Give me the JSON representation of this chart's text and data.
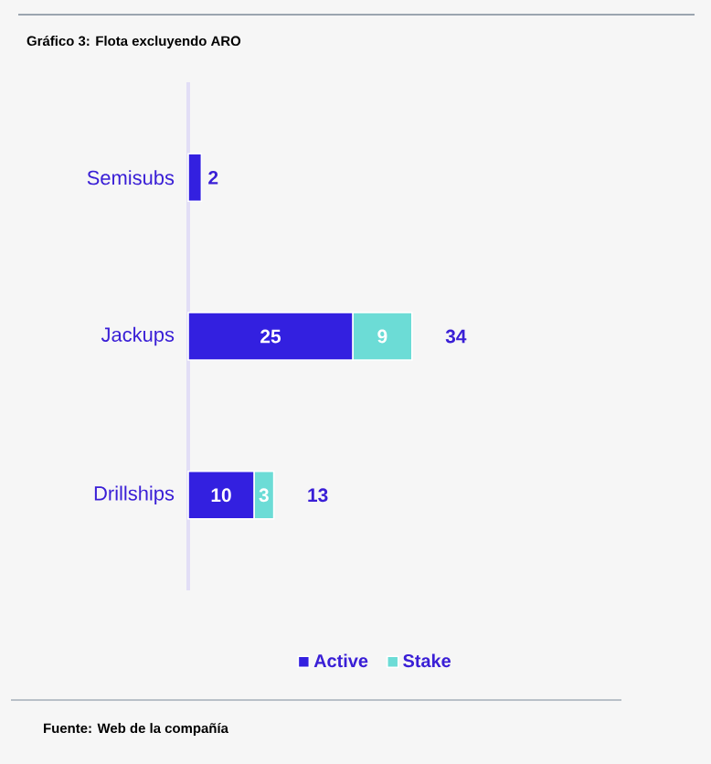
{
  "chart_data": {
    "type": "bar",
    "orientation": "horizontal",
    "stacked": true,
    "title": "Gráfico 3: Flota excluyendo ARO",
    "categories": [
      "Semisubs",
      "Jackups",
      "Drillships"
    ],
    "series": [
      {
        "name": "Active",
        "color": "#3320e0",
        "values": [
          2,
          25,
          10
        ],
        "value_labels": [
          "2",
          "25",
          "10"
        ]
      },
      {
        "name": "Stake",
        "color": "#6cdcd6",
        "values": [
          0,
          9,
          3
        ],
        "value_labels": [
          null,
          "9",
          "3"
        ]
      }
    ],
    "totals": [
      null,
      "34",
      "13"
    ],
    "legend": "bottom",
    "annotations": [
      "Fuente: Web de la compañía"
    ]
  }
}
